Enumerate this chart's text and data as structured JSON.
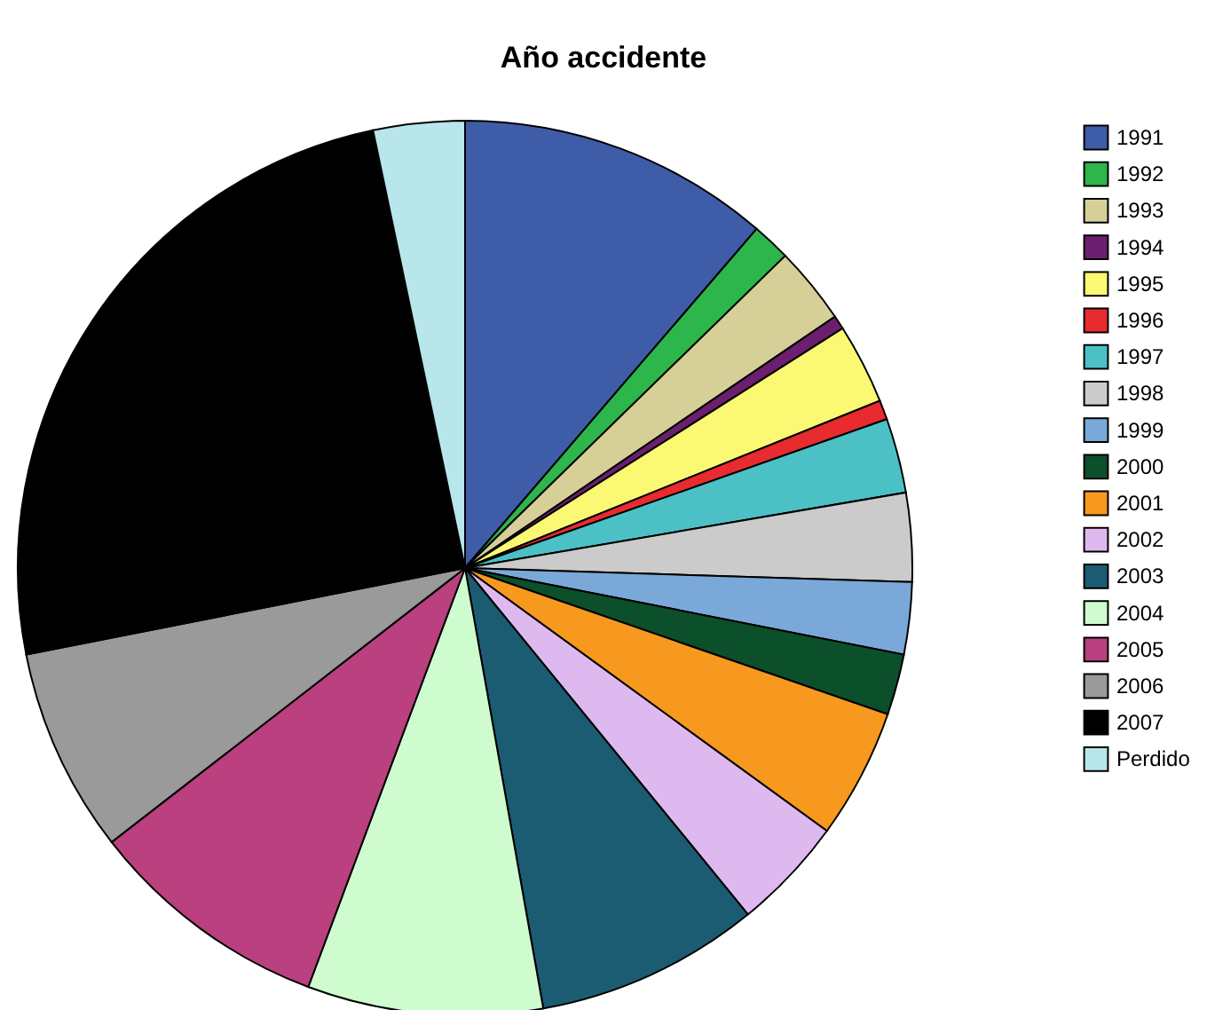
{
  "chart_data": {
    "type": "pie",
    "title": "Año accidente",
    "categories": [
      "1991",
      "1992",
      "1993",
      "1994",
      "1995",
      "1996",
      "1997",
      "1998",
      "1999",
      "2000",
      "2001",
      "2002",
      "2003",
      "2004",
      "2005",
      "2006",
      "2007",
      "Perdido"
    ],
    "values": [
      11.3,
      1.4,
      2.8,
      0.5,
      2.9,
      0.7,
      2.7,
      3.2,
      2.6,
      2.2,
      4.7,
      4.1,
      8.1,
      8.5,
      8.8,
      7.4,
      24.8,
      3.3
    ],
    "colors": [
      "#3f5ca9",
      "#2db64b",
      "#d6cf98",
      "#6b1f6e",
      "#fbf873",
      "#e82b2f",
      "#4bc1c6",
      "#cbcbcb",
      "#7aa9d9",
      "#0c4f2b",
      "#f7981f",
      "#deb9ef",
      "#1c5c73",
      "#cffccf",
      "#ba407f",
      "#9a9a9a",
      "#000000",
      "#b8e6ea"
    ],
    "legend": "right"
  }
}
